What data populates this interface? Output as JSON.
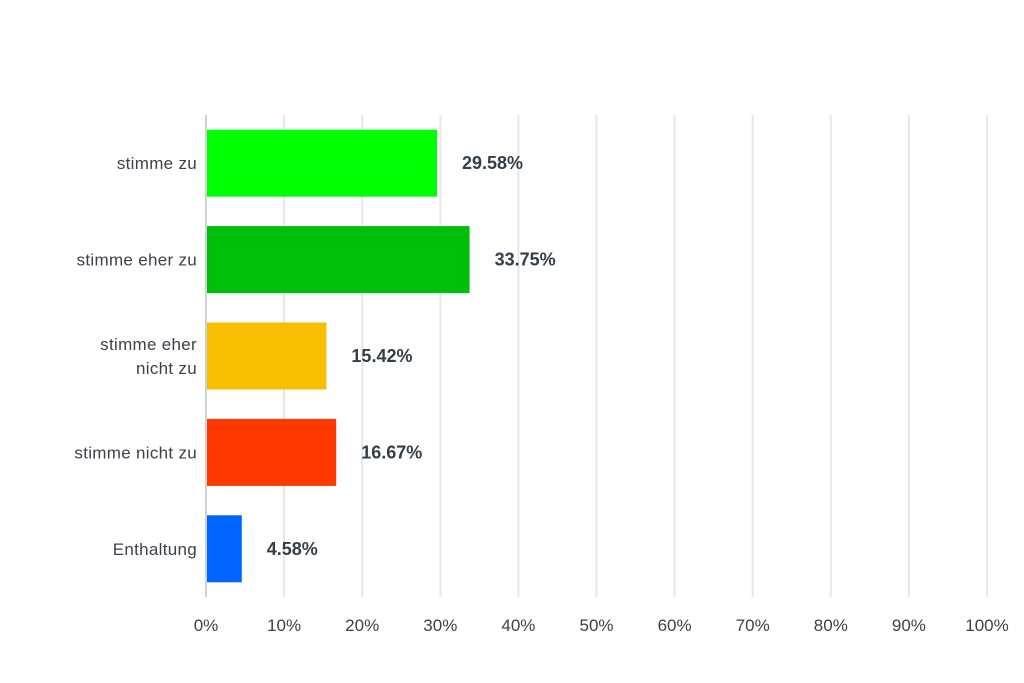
{
  "chart_data": {
    "type": "bar",
    "orientation": "horizontal",
    "categories": [
      [
        "stimme zu"
      ],
      [
        "stimme eher zu"
      ],
      [
        "stimme eher",
        "nicht zu"
      ],
      [
        "stimme nicht zu"
      ],
      [
        "Enthaltung"
      ]
    ],
    "values": [
      29.58,
      33.75,
      15.42,
      16.67,
      4.58
    ],
    "data_labels": [
      "29.58%",
      "33.75%",
      "15.42%",
      "16.67%",
      "4.58%"
    ],
    "colors": [
      "#00ff00",
      "#00bf0b",
      "#f8be00",
      "#ff3a00",
      "#0065ff"
    ],
    "xlim": [
      0,
      100
    ],
    "x_ticks": [
      "0%",
      "10%",
      "20%",
      "30%",
      "40%",
      "50%",
      "60%",
      "70%",
      "80%",
      "90%",
      "100%"
    ],
    "grid": true,
    "title": "",
    "xlabel": "",
    "ylabel": ""
  }
}
